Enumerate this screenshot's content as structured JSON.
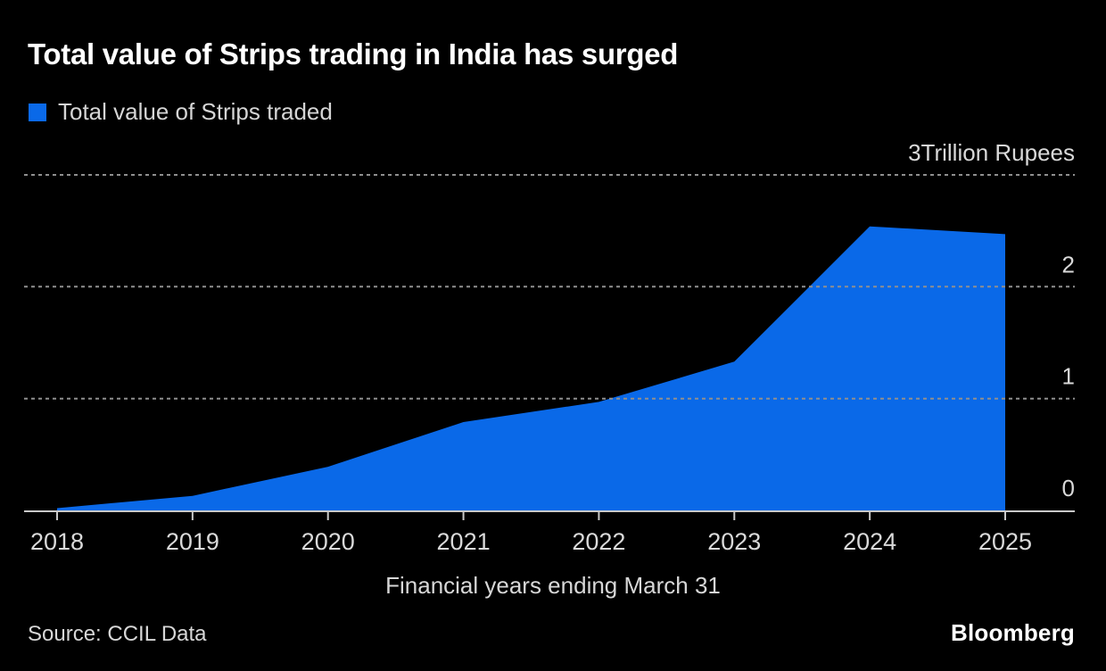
{
  "header": {
    "title": "Total value of Strips trading in India has surged"
  },
  "legend": {
    "label": "Total value of Strips traded",
    "swatch_color": "#0a69e8"
  },
  "chart_data": {
    "type": "area",
    "title": "Total value of Strips trading in India has surged",
    "categories": [
      "2018",
      "2019",
      "2020",
      "2021",
      "2022",
      "2023",
      "2024",
      "2025"
    ],
    "series": [
      {
        "name": "Total value of Strips traded",
        "color": "#0a69e8",
        "values": [
          0.02,
          0.13,
          0.39,
          0.79,
          0.97,
          1.33,
          2.54,
          2.47
        ]
      }
    ],
    "units": "Trillion Rupees",
    "xlabel": "Financial years ending March 31",
    "ylim": [
      0,
      3
    ],
    "yticks": [
      {
        "value": 0,
        "label": "0"
      },
      {
        "value": 1,
        "label": "1"
      },
      {
        "value": 2,
        "label": "2"
      },
      {
        "value": 3,
        "label": "3Trillion Rupees"
      }
    ],
    "gridline_values": [
      1,
      2,
      3
    ],
    "grid_style": "dashed horizontal gridlines, y labels right-aligned above lines",
    "legend_position": "top-left",
    "colors": {
      "background": "#000000",
      "area": "#0a69e8",
      "gridline": "#8f8f8f",
      "axis": "#c9c9c9",
      "tick_label": "#d9d9d9",
      "title": "#ffffff",
      "text": "#d7d7d7"
    }
  },
  "footer": {
    "source": "Source: CCIL Data",
    "brand": "Bloomberg"
  }
}
